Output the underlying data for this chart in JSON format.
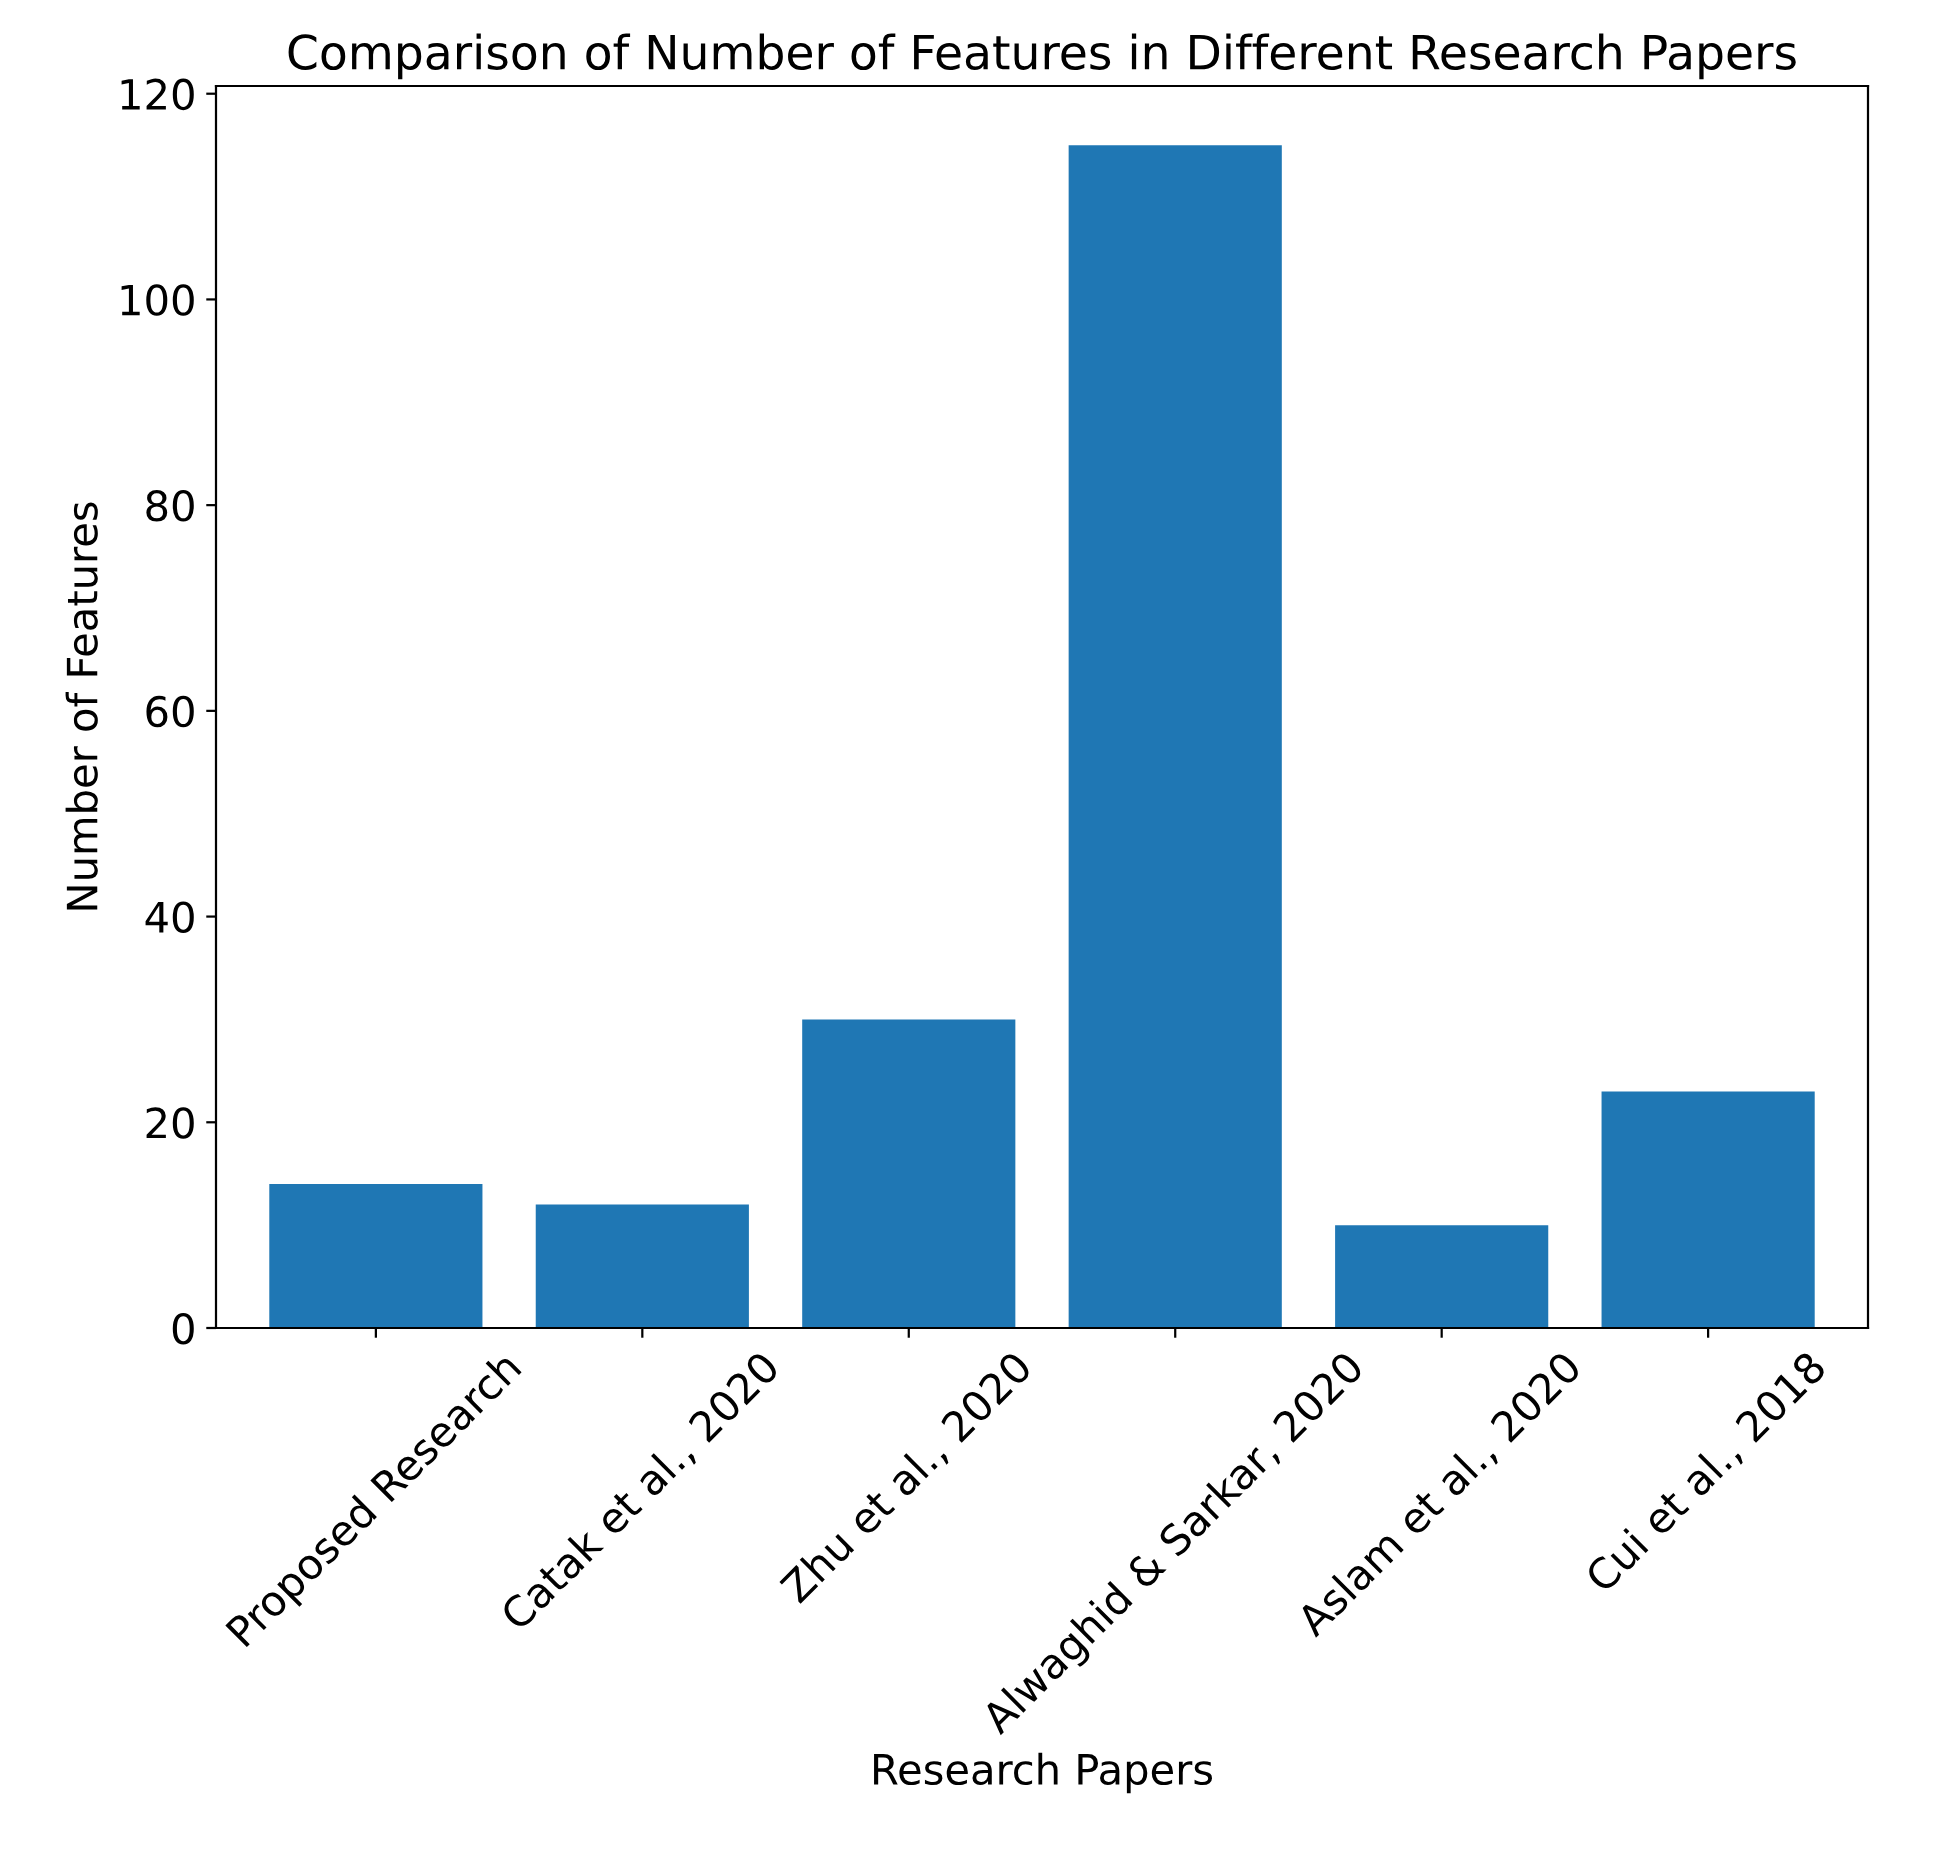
{
  "chart_data": {
    "type": "bar",
    "title": "Comparison of Number of Features in Different Research Papers",
    "xlabel": "Research Papers",
    "ylabel": "Number of Features",
    "categories": [
      "Proposed Research",
      "Catak et al., 2020",
      "Zhu et al., 2020",
      "Alwaghid & Sarkar, 2020",
      "Aslam et al., 2020",
      "Cui et al., 2018"
    ],
    "values": [
      14,
      12,
      30,
      115,
      10,
      23
    ],
    "color": "#1f77b4",
    "ylim": [
      0,
      120.75
    ],
    "yticks": [
      0,
      20,
      40,
      60,
      80,
      100,
      120
    ],
    "grid": false
  }
}
